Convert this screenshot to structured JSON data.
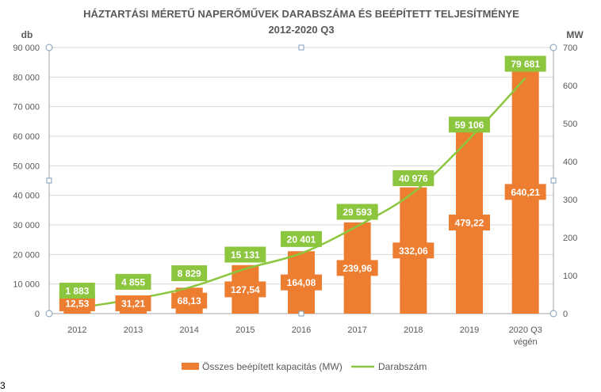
{
  "chart_data": {
    "type": "bar+line",
    "title": "HÁZTARTÁSI MÉRETŰ NAPERŐMŰVEK DARABSZÁMA ÉS BEÉPÍTETT TELJESÍTMÉNYE",
    "subtitle": "2012-2020 Q3",
    "categories": [
      "2012",
      "2013",
      "2014",
      "2015",
      "2016",
      "2017",
      "2018",
      "2019",
      "2020 Q3|végén"
    ],
    "y_left": {
      "label": "db",
      "range": [
        0,
        90000
      ],
      "ticks": [
        "0",
        "10 000",
        "20 000",
        "30 000",
        "40 000",
        "50 000",
        "60 000",
        "70 000",
        "80 000",
        "90 000"
      ]
    },
    "y_right": {
      "label": "MW",
      "range": [
        0,
        700
      ],
      "ticks": [
        "0",
        "100",
        "200",
        "300",
        "400",
        "500",
        "600",
        "700"
      ]
    },
    "grid": true,
    "legend_position": "bottom",
    "series": [
      {
        "name": "Összes beépített kapacitás (MW)",
        "type": "bar",
        "axis": "right",
        "color": "#ED7D31",
        "values": [
          12.53,
          31.21,
          68.13,
          127.54,
          164.08,
          239.96,
          332.06,
          479.22,
          640.21
        ],
        "labels": [
          "12,53",
          "31,21",
          "68,13",
          "127,54",
          "164,08",
          "239,96",
          "332,06",
          "479,22",
          "640,21"
        ]
      },
      {
        "name": "Darabszám",
        "type": "line",
        "axis": "left",
        "color": "#8CC63E",
        "values": [
          1883,
          4855,
          8829,
          15131,
          20401,
          29593,
          40976,
          59106,
          79681
        ],
        "labels": [
          "1 883",
          "4 855",
          "8 829",
          "15 131",
          "20 401",
          "29 593",
          "40 976",
          "59 106",
          "79 681"
        ]
      }
    ]
  },
  "stray_text": "3"
}
